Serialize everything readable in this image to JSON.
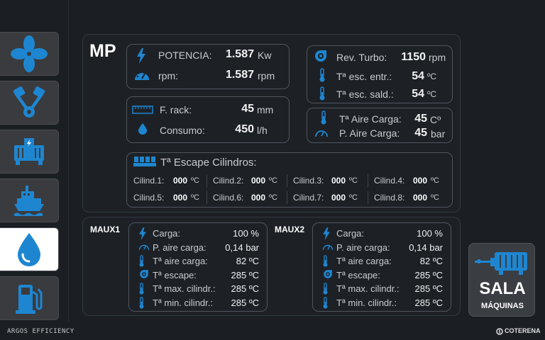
{
  "colors": {
    "accent": "#1e86d0",
    "background": "#1b1e23",
    "panel_border": "#2f3a42",
    "box_border": "#4d555c",
    "active_button": "#ffffff"
  },
  "sidebar": {
    "items": [
      {
        "name": "fan",
        "icon": "fan-icon"
      },
      {
        "name": "engine",
        "icon": "engine-pistons-icon"
      },
      {
        "name": "generator",
        "icon": "generator-icon"
      },
      {
        "name": "ship",
        "icon": "ship-icon"
      },
      {
        "name": "fuel-drop",
        "icon": "drop-icon",
        "active": true
      },
      {
        "name": "fuel-pump",
        "icon": "fuel-pump-icon"
      }
    ]
  },
  "mp": {
    "title": "MP",
    "potencia": {
      "label": "POTENCIA:",
      "value": "1.587",
      "unit": "Kw"
    },
    "rpm": {
      "label": "rpm:",
      "value": "1.587",
      "unit": "rpm"
    },
    "rack": {
      "label": "F. rack:",
      "value": "45",
      "unit": "mm"
    },
    "consumo": {
      "label": "Consumo:",
      "value": "450",
      "unit": "l/h"
    },
    "turbo": {
      "label": "Rev. Turbo:",
      "value": "1150",
      "unit": "rpm"
    },
    "esc_entr": {
      "label": "Tª esc. entr.:",
      "value": "54",
      "unit": "ºC"
    },
    "esc_sald": {
      "label": "Tª esc. sald.:",
      "value": "54",
      "unit": "ºC"
    },
    "aire_carga_t": {
      "label": "Tª Aire Carga:",
      "value": "45",
      "unit": "Cº"
    },
    "aire_carga_p": {
      "label": "P. Aire Carga:",
      "value": "45",
      "unit": "bar"
    },
    "cylinders": {
      "title": "Tª Escape Cilindros:",
      "unit": "ºC",
      "items": [
        {
          "label": "Cilind.1:",
          "value": "000"
        },
        {
          "label": "Cilind.2:",
          "value": "000"
        },
        {
          "label": "Cilind.3:",
          "value": "000"
        },
        {
          "label": "Cilind.4:",
          "value": "000"
        },
        {
          "label": "Cilind.5:",
          "value": "000"
        },
        {
          "label": "Cilind.6:",
          "value": "000"
        },
        {
          "label": "Cilind.7:",
          "value": "000"
        },
        {
          "label": "Cilind.8:",
          "value": "000"
        }
      ]
    }
  },
  "maux1": {
    "title": "MAUX1",
    "rows": [
      {
        "label": "Carga:",
        "value": "100 %",
        "icon": "bolt-icon"
      },
      {
        "label": "P. aire carga:",
        "value": "0,14 bar",
        "icon": "gauge-icon"
      },
      {
        "label": "Tª aire carga:",
        "value": "82 ºC",
        "icon": "thermometer-icon"
      },
      {
        "label": "Tª escape:",
        "value": "285 ºC",
        "icon": "turbo-icon"
      },
      {
        "label": "Tª max. cilindr.:",
        "value": "285 ºC",
        "icon": "thermometer-icon"
      },
      {
        "label": "Tª min. cilindr.:",
        "value": "285 ºC",
        "icon": "thermometer-icon"
      }
    ]
  },
  "maux2": {
    "title": "MAUX2",
    "rows": [
      {
        "label": "Carga:",
        "value": "100 %",
        "icon": "bolt-icon"
      },
      {
        "label": "P. aire carga:",
        "value": "0,14 bar",
        "icon": "gauge-icon"
      },
      {
        "label": "Tª aire carga:",
        "value": "82 ºC",
        "icon": "thermometer-icon"
      },
      {
        "label": "Tª escape:",
        "value": "285 ºC",
        "icon": "turbo-icon"
      },
      {
        "label": "Tª max. cilindr.:",
        "value": "285 ºC",
        "icon": "thermometer-icon"
      },
      {
        "label": "Tª min. cilindr.:",
        "value": "285 ºC",
        "icon": "thermometer-icon"
      }
    ]
  },
  "sala_button": {
    "line1": "SALA",
    "line2": "MÁQUINAS",
    "icon": "engine-room-icon"
  },
  "footer": {
    "left": "ARGOS EFFICIENCY",
    "right": "COTERENA",
    "right_icon": "coterena-logo-icon"
  }
}
